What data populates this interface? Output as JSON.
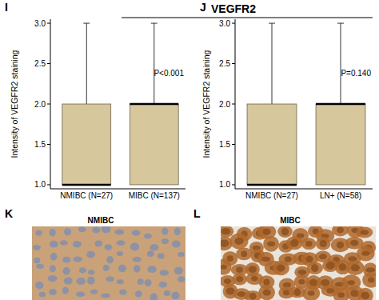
{
  "figure": {
    "title": "VEGFR2",
    "images": [
      {
        "panel": "K",
        "label": "NMIBC"
      },
      {
        "panel": "L",
        "label": "MIBC"
      }
    ]
  },
  "chart_data": [
    {
      "type": "box",
      "panel": "I",
      "y_label": "Intensity of VEGFR2 staining",
      "annotations": [
        "P<0.001"
      ],
      "categories": [
        "NMIBC (N=27)",
        "MIBC (N=137)"
      ],
      "boxes": [
        {
          "min": 1,
          "q1": 1,
          "median": 1,
          "q3": 2,
          "max": 3
        },
        {
          "min": 1,
          "q1": 1,
          "median": 2,
          "q3": 2,
          "max": 3
        }
      ],
      "color": "#d6c79c",
      "ylim": [
        0.95,
        3.05
      ],
      "yticks": [
        {
          "value": 1,
          "label": "1.0"
        },
        {
          "value": 1.5,
          "label": "1.5"
        },
        {
          "value": 2,
          "label": "2.0"
        },
        {
          "value": 2.5,
          "label": "2.5"
        },
        {
          "value": 3,
          "label": "3.0"
        }
      ]
    },
    {
      "type": "box",
      "panel": "J",
      "y_label": "Intensity of VEGFR2 staining",
      "annotations": [
        "P=0.140"
      ],
      "categories": [
        "NMIBC (N=27)",
        "LN+ (N=58)"
      ],
      "boxes": [
        {
          "min": 1,
          "q1": 1,
          "median": 1,
          "q3": 2,
          "max": 3
        },
        {
          "min": 1,
          "q1": 1,
          "median": 2,
          "q3": 2,
          "max": 3
        }
      ],
      "color": "#d6c79c",
      "ylim": [
        0.95,
        3.05
      ],
      "yticks": [
        {
          "value": 1,
          "label": "1.0"
        },
        {
          "value": 1.5,
          "label": "1.5"
        },
        {
          "value": 2,
          "label": "2.0"
        },
        {
          "value": 2.5,
          "label": "2.5"
        },
        {
          "value": 3,
          "label": "3.0"
        }
      ]
    }
  ]
}
